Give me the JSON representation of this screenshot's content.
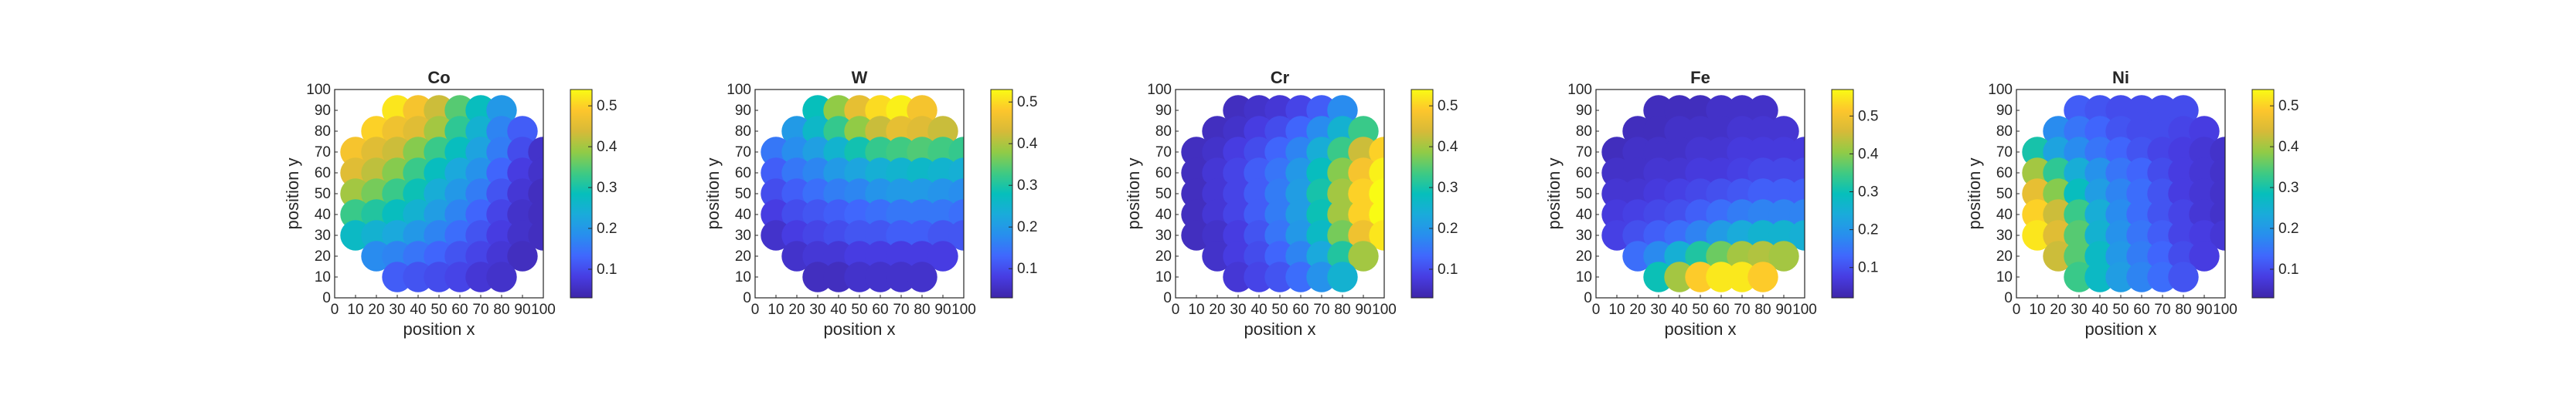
{
  "figure": {
    "ticks": [
      "0",
      "10",
      "20",
      "30",
      "40",
      "50",
      "60",
      "70",
      "80",
      "90",
      "100"
    ]
  },
  "chart_data": [
    {
      "type": "scatter",
      "title": "Co",
      "xlabel": "position x",
      "ylabel": "position y",
      "xlim": [
        0,
        100
      ],
      "ylim": [
        0,
        100
      ],
      "colormap": "parula",
      "clim": [
        0.03,
        0.54
      ],
      "colorbar_ticks": [
        "0.1",
        "0.2",
        "0.3",
        "0.4",
        "0.5"
      ],
      "grid": [
        [
          null,
          null,
          0.52,
          0.48,
          0.43,
          0.35,
          0.28,
          0.2,
          null,
          null,
          null
        ],
        [
          null,
          0.5,
          0.47,
          0.45,
          0.4,
          0.32,
          0.25,
          0.17,
          0.12,
          null,
          null
        ],
        [
          0.48,
          0.45,
          0.43,
          0.38,
          0.33,
          0.28,
          0.22,
          0.16,
          0.1,
          0.06,
          null
        ],
        [
          0.45,
          0.42,
          0.38,
          0.33,
          0.28,
          0.23,
          0.19,
          0.13,
          0.08,
          0.06,
          null
        ],
        [
          0.4,
          0.37,
          0.33,
          0.29,
          0.24,
          0.2,
          0.16,
          0.11,
          0.07,
          0.05,
          null
        ],
        [
          0.33,
          0.31,
          0.28,
          0.25,
          0.21,
          0.17,
          0.13,
          0.09,
          0.06,
          0.05,
          null
        ],
        [
          0.27,
          0.25,
          0.23,
          0.2,
          0.17,
          0.14,
          0.11,
          0.08,
          0.06,
          0.05,
          null
        ],
        [
          null,
          0.18,
          0.17,
          0.15,
          0.13,
          0.11,
          0.09,
          0.07,
          0.05,
          null,
          null
        ],
        [
          null,
          null,
          0.12,
          0.11,
          0.1,
          0.09,
          0.07,
          0.06,
          null,
          null,
          null
        ]
      ]
    },
    {
      "type": "scatter",
      "title": "W",
      "xlabel": "position x",
      "ylabel": "position y",
      "xlim": [
        0,
        100
      ],
      "ylim": [
        0,
        100
      ],
      "colormap": "parula",
      "clim": [
        0.03,
        0.53
      ],
      "colorbar_ticks": [
        "0.1",
        "0.2",
        "0.3",
        "0.4",
        "0.5"
      ],
      "grid": [
        [
          null,
          null,
          0.28,
          0.38,
          0.45,
          0.5,
          0.52,
          0.47,
          null,
          null,
          null
        ],
        [
          null,
          0.2,
          0.26,
          0.32,
          0.38,
          0.42,
          0.45,
          0.44,
          0.42,
          null,
          null
        ],
        [
          0.15,
          0.18,
          0.21,
          0.25,
          0.29,
          0.32,
          0.33,
          0.34,
          0.33,
          0.32,
          null
        ],
        [
          0.12,
          0.15,
          0.17,
          0.2,
          0.22,
          0.24,
          0.25,
          0.26,
          0.25,
          0.24,
          null
        ],
        [
          0.1,
          0.12,
          0.14,
          0.16,
          0.17,
          0.19,
          0.2,
          0.2,
          0.19,
          0.18,
          null
        ],
        [
          0.08,
          0.1,
          0.11,
          0.12,
          0.13,
          0.14,
          0.15,
          0.15,
          0.15,
          0.14,
          null
        ],
        [
          0.06,
          0.08,
          0.09,
          0.1,
          0.11,
          0.11,
          0.12,
          0.12,
          0.11,
          0.11,
          null
        ],
        [
          null,
          0.06,
          0.07,
          0.07,
          0.08,
          0.08,
          0.08,
          0.08,
          0.08,
          null,
          null
        ],
        [
          null,
          null,
          0.05,
          0.05,
          0.06,
          0.06,
          0.06,
          0.06,
          null,
          null,
          null
        ]
      ]
    },
    {
      "type": "scatter",
      "title": "Cr",
      "xlabel": "position x",
      "ylabel": "position y",
      "xlim": [
        0,
        100
      ],
      "ylim": [
        0,
        100
      ],
      "colormap": "parula",
      "clim": [
        0.03,
        0.54
      ],
      "colorbar_ticks": [
        "0.1",
        "0.2",
        "0.3",
        "0.4",
        "0.5"
      ],
      "grid": [
        [
          null,
          null,
          0.05,
          0.06,
          0.07,
          0.09,
          0.12,
          0.18,
          null,
          null,
          null
        ],
        [
          null,
          0.05,
          0.06,
          0.08,
          0.1,
          0.13,
          0.18,
          0.25,
          0.33,
          null,
          null
        ],
        [
          0.05,
          0.06,
          0.08,
          0.1,
          0.13,
          0.17,
          0.24,
          0.33,
          0.43,
          0.5,
          null
        ],
        [
          0.05,
          0.07,
          0.09,
          0.12,
          0.15,
          0.2,
          0.28,
          0.38,
          0.48,
          0.53,
          null
        ],
        [
          0.05,
          0.07,
          0.09,
          0.12,
          0.16,
          0.21,
          0.3,
          0.4,
          0.5,
          0.54,
          null
        ],
        [
          0.05,
          0.07,
          0.09,
          0.12,
          0.16,
          0.21,
          0.29,
          0.4,
          0.5,
          0.54,
          null
        ],
        [
          0.05,
          0.06,
          0.08,
          0.11,
          0.15,
          0.2,
          0.27,
          0.37,
          0.47,
          0.52,
          null
        ],
        [
          null,
          0.06,
          0.08,
          0.1,
          0.13,
          0.17,
          0.23,
          0.31,
          0.4,
          null,
          null
        ],
        [
          null,
          null,
          0.07,
          0.09,
          0.11,
          0.14,
          0.19,
          0.25,
          null,
          null,
          null
        ]
      ]
    },
    {
      "type": "scatter",
      "title": "Fe",
      "xlabel": "position x",
      "ylabel": "position y",
      "xlim": [
        0,
        100
      ],
      "ylim": [
        0,
        100
      ],
      "colormap": "parula",
      "clim": [
        0.02,
        0.57
      ],
      "colorbar_ticks": [
        "0.1",
        "0.2",
        "0.3",
        "0.4",
        "0.5"
      ],
      "grid": [
        [
          null,
          null,
          0.04,
          0.04,
          0.04,
          0.05,
          0.05,
          0.05,
          null,
          null,
          null
        ],
        [
          null,
          0.04,
          0.04,
          0.05,
          0.05,
          0.05,
          0.06,
          0.06,
          0.06,
          null,
          null
        ],
        [
          0.04,
          0.05,
          0.05,
          0.05,
          0.06,
          0.06,
          0.07,
          0.07,
          0.07,
          0.07,
          null
        ],
        [
          0.05,
          0.05,
          0.06,
          0.06,
          0.07,
          0.07,
          0.08,
          0.09,
          0.09,
          0.09,
          null
        ],
        [
          0.06,
          0.06,
          0.07,
          0.08,
          0.09,
          0.1,
          0.11,
          0.12,
          0.12,
          0.12,
          null
        ],
        [
          0.07,
          0.08,
          0.09,
          0.1,
          0.12,
          0.14,
          0.16,
          0.17,
          0.17,
          0.17,
          null
        ],
        [
          0.08,
          0.1,
          0.12,
          0.14,
          0.17,
          0.21,
          0.24,
          0.26,
          0.26,
          0.25,
          null
        ],
        [
          null,
          0.14,
          0.18,
          0.25,
          0.32,
          0.38,
          0.42,
          0.43,
          0.42,
          null,
          null
        ],
        [
          null,
          null,
          0.3,
          0.42,
          0.52,
          0.55,
          0.55,
          0.52,
          null,
          null,
          null
        ]
      ]
    },
    {
      "type": "scatter",
      "title": "Ni",
      "xlabel": "position x",
      "ylabel": "position y",
      "xlim": [
        0,
        100
      ],
      "ylim": [
        0,
        100
      ],
      "colormap": "parula",
      "clim": [
        0.03,
        0.54
      ],
      "colorbar_ticks": [
        "0.1",
        "0.2",
        "0.3",
        "0.4",
        "0.5"
      ],
      "grid": [
        [
          null,
          null,
          0.12,
          0.11,
          0.1,
          0.1,
          0.1,
          0.1,
          null,
          null,
          null
        ],
        [
          null,
          0.18,
          0.15,
          0.13,
          0.11,
          0.1,
          0.1,
          0.09,
          0.08,
          null,
          null
        ],
        [
          0.3,
          0.22,
          0.18,
          0.15,
          0.13,
          0.11,
          0.09,
          0.08,
          0.07,
          0.06,
          null
        ],
        [
          0.4,
          0.32,
          0.24,
          0.19,
          0.15,
          0.13,
          0.1,
          0.08,
          0.07,
          0.06,
          null
        ],
        [
          0.46,
          0.38,
          0.28,
          0.21,
          0.17,
          0.14,
          0.11,
          0.08,
          0.07,
          0.06,
          null
        ],
        [
          0.5,
          0.43,
          0.33,
          0.24,
          0.18,
          0.14,
          0.11,
          0.09,
          0.07,
          0.06,
          null
        ],
        [
          0.52,
          0.45,
          0.35,
          0.25,
          0.19,
          0.15,
          0.12,
          0.09,
          0.08,
          0.07,
          null
        ],
        [
          null,
          0.43,
          0.35,
          0.27,
          0.2,
          0.16,
          0.13,
          0.1,
          0.08,
          null,
          null
        ],
        [
          null,
          null,
          0.33,
          0.27,
          0.21,
          0.17,
          0.14,
          0.11,
          null,
          null,
          null
        ]
      ]
    }
  ]
}
